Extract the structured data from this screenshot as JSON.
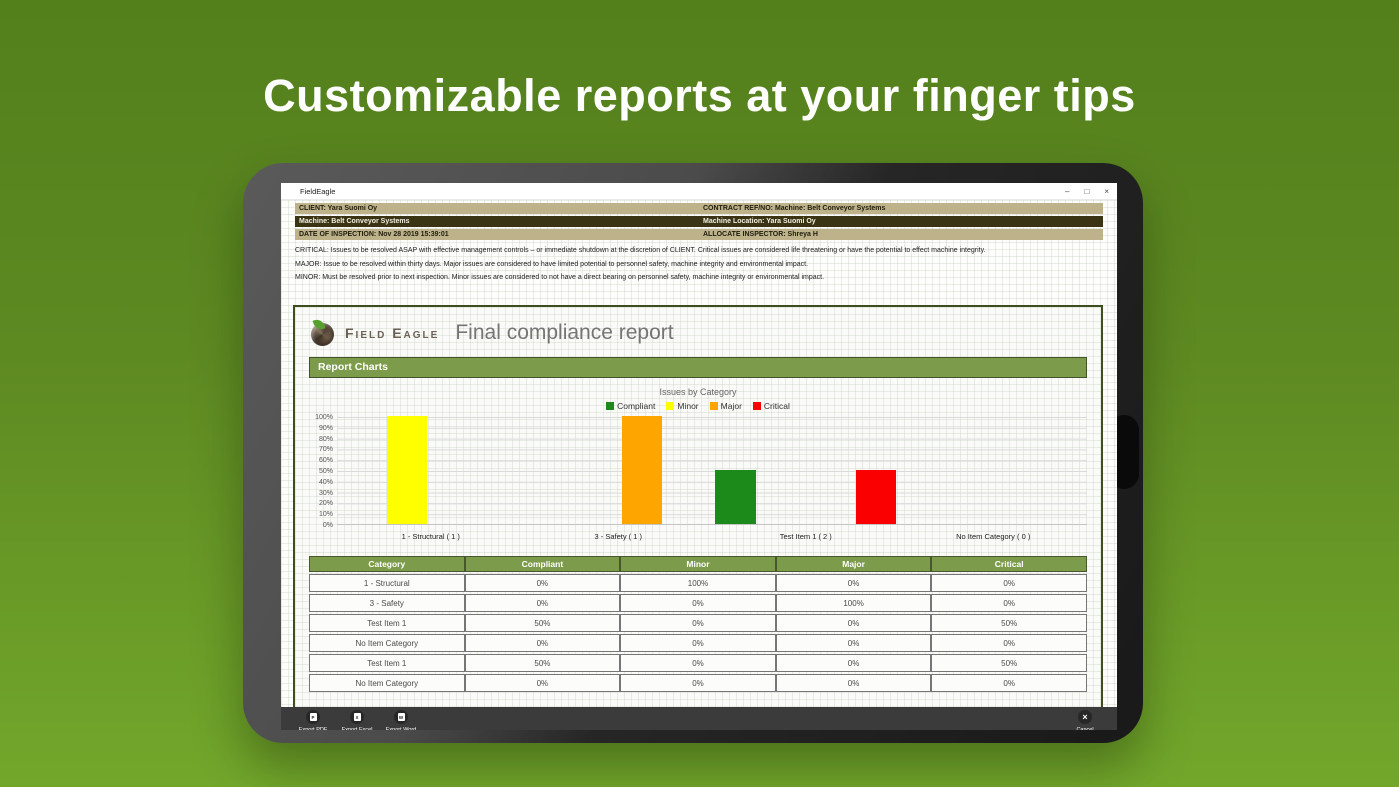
{
  "page": {
    "headline": "Customizable reports at your finger tips",
    "background_top_color": "#54801c",
    "background_bottom_color": "#72a72b"
  },
  "window": {
    "title": "FieldEagle",
    "controls": {
      "minimize": "–",
      "restore": "□",
      "close": "×"
    }
  },
  "info_banner": {
    "rows": [
      {
        "left": "CLIENT: Yara Suomi Oy",
        "right": "CONTRACT REF/NO: Machine: Belt Conveyor Systems",
        "style": "tan"
      },
      {
        "left": "Machine: Belt Conveyor Systems",
        "right": "Machine Location: Yara Suomi Oy",
        "style": "dark"
      },
      {
        "left": "DATE OF INSPECTION: Nov 28 2019 15:39:01",
        "right": "ALLOCATE INSPECTOR: Shreya H",
        "style": "tan"
      }
    ]
  },
  "severity_notes": [
    "CRITICAL: Issues to be resolved ASAP with effective management controls – or immediate shutdown at the discretion of CLIENT. Critical issues are considered life threatening or have the potential to effect machine integrity.",
    "MAJOR: Issue to be resolved within thirty days. Major issues are considered to have limited potential to personnel safety, machine integrity and environmental impact.",
    "MINOR: Must be resolved prior to next inspection. Minor issues are considered to not have a direct bearing on personnel safety, machine integrity or environmental impact."
  ],
  "report": {
    "brand": "Field Eagle",
    "title": "Final compliance report",
    "section_header": "Report Charts",
    "accent_green": "#7c9c4b"
  },
  "chart_data": {
    "type": "bar",
    "title": "Issues by Category",
    "categories": [
      "1 - Structural ( 1 )",
      "3 - Safety ( 1 )",
      "Test Item 1 ( 2 )",
      "No Item Category ( 0 )"
    ],
    "series": [
      {
        "name": "Compliant",
        "color": "#1b8a1b",
        "values": [
          0,
          0,
          50,
          0
        ]
      },
      {
        "name": "Minor",
        "color": "#ffff00",
        "values": [
          100,
          0,
          0,
          0
        ]
      },
      {
        "name": "Major",
        "color": "#ffa500",
        "values": [
          0,
          100,
          0,
          0
        ]
      },
      {
        "name": "Critical",
        "color": "#fb0000",
        "values": [
          0,
          0,
          50,
          0
        ]
      }
    ],
    "xlabel": "",
    "ylabel": "",
    "ylim": [
      0,
      100
    ],
    "yticks": [
      "100%",
      "90%",
      "80%",
      "70%",
      "60%",
      "50%",
      "40%",
      "30%",
      "20%",
      "10%",
      "0%"
    ],
    "grid": true,
    "legend_position": "top"
  },
  "table": {
    "headers": [
      "Category",
      "Compliant",
      "Minor",
      "Major",
      "Critical"
    ],
    "rows": [
      [
        "1 - Structural",
        "0%",
        "100%",
        "0%",
        "0%"
      ],
      [
        "3 - Safety",
        "0%",
        "0%",
        "100%",
        "0%"
      ],
      [
        "Test Item 1",
        "50%",
        "0%",
        "0%",
        "50%"
      ],
      [
        "No Item Category",
        "0%",
        "0%",
        "0%",
        "0%"
      ],
      [
        "Test Item 1",
        "50%",
        "0%",
        "0%",
        "50%"
      ],
      [
        "No Item Category",
        "0%",
        "0%",
        "0%",
        "0%"
      ]
    ]
  },
  "toolbar": {
    "buttons": [
      {
        "label": "Export PDF",
        "icon": "pdf-file-icon",
        "letter": "P"
      },
      {
        "label": "Export Excel",
        "icon": "excel-file-icon",
        "letter": "X"
      },
      {
        "label": "Export Word",
        "icon": "word-file-icon",
        "letter": "W"
      }
    ],
    "cancel": {
      "label": "Cancel",
      "icon": "close-icon"
    }
  }
}
